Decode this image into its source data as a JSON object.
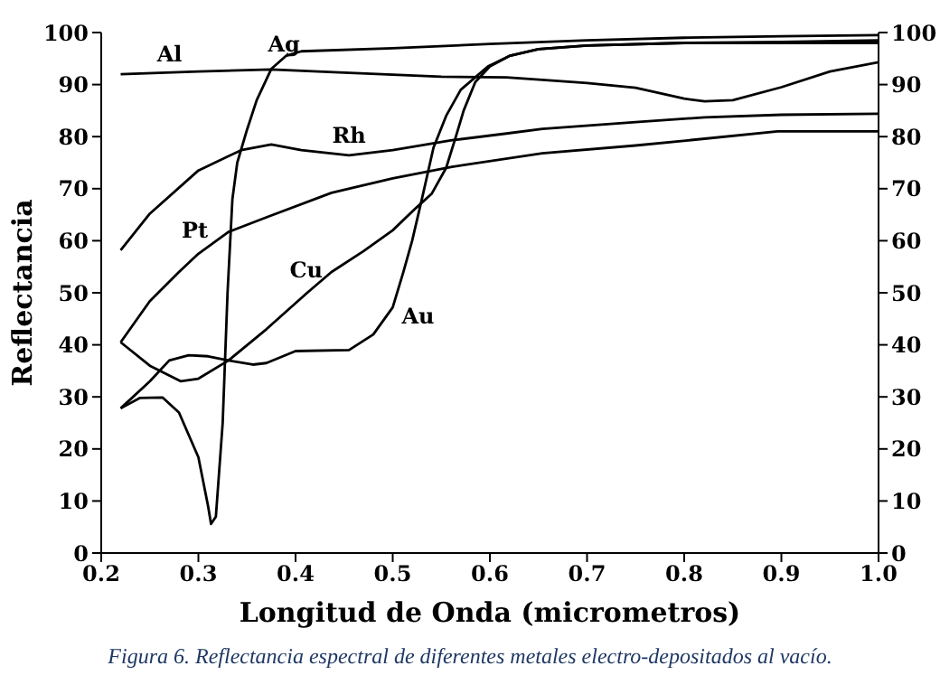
{
  "chart_data": {
    "type": "line",
    "xlabel": "Longitud de Onda (micrometros)",
    "ylabel": "Reflectancia",
    "annotations": [
      "Figura 6. Reflectancia espectral de diferentes metales electro-depositados al vacío."
    ],
    "xlim": [
      0.2,
      1.0
    ],
    "xticks": [
      0.2,
      0.3,
      0.4,
      0.5,
      0.6,
      0.7,
      0.8,
      0.9,
      {
        "value": 1.0,
        "label": "1.0"
      }
    ],
    "ylim": [
      0,
      100
    ],
    "yticks": [
      0,
      10,
      20,
      30,
      40,
      50,
      60,
      70,
      80,
      90,
      100
    ],
    "y2lim": [
      0,
      100
    ],
    "y2ticks": [
      0,
      10,
      20,
      30,
      40,
      50,
      60,
      70,
      80,
      90,
      100
    ],
    "grid": false,
    "legend": false,
    "marker": "none",
    "line_style": "solid",
    "series": [
      {
        "name": "Al",
        "color": "#000000",
        "x": [
          0.22,
          0.3,
          0.375,
          0.45,
          0.55,
          0.617,
          0.654,
          0.7,
          0.75,
          0.8,
          0.821,
          0.85,
          0.9,
          0.95,
          1.0
        ],
        "values": [
          92,
          92.5,
          92.9,
          92.3,
          91.5,
          91.4,
          90.9,
          90.3,
          89.4,
          87.3,
          86.8,
          87,
          89.5,
          92.5,
          94.3
        ]
      },
      {
        "name": "Ag",
        "color": "#000000",
        "x": [
          0.22,
          0.24,
          0.263,
          0.28,
          0.3,
          0.31,
          0.313,
          0.318,
          0.325,
          0.33,
          0.335,
          0.34,
          0.35,
          0.36,
          0.375,
          0.39,
          0.406,
          0.5,
          0.6,
          0.7,
          0.8,
          0.9,
          1.0
        ],
        "values": [
          27.8,
          29.8,
          29.9,
          27,
          18.4,
          9,
          5.6,
          7,
          25,
          50,
          68,
          75,
          81.3,
          87,
          93,
          95.5,
          96.4,
          97,
          97.8,
          98.5,
          99,
          99.3,
          99.5
        ]
      },
      {
        "name": "Rh",
        "color": "#000000",
        "x": [
          0.22,
          0.25,
          0.3,
          0.344,
          0.375,
          0.406,
          0.455,
          0.5,
          0.561,
          0.617,
          0.654,
          0.75,
          0.821,
          0.9,
          1.0
        ],
        "values": [
          58.2,
          65.2,
          73.5,
          77.4,
          78.5,
          77.4,
          76.4,
          77.4,
          79.3,
          80.6,
          81.5,
          82.8,
          83.7,
          84.2,
          84.4
        ]
      },
      {
        "name": "Pt",
        "color": "#000000",
        "x": [
          0.22,
          0.25,
          0.28,
          0.3,
          0.331,
          0.37,
          0.437,
          0.5,
          0.561,
          0.654,
          0.75,
          0.821,
          0.896,
          1.0
        ],
        "values": [
          40.5,
          48.4,
          54,
          57.5,
          61.7,
          64.5,
          69.2,
          72,
          74.2,
          76.8,
          78.3,
          79.6,
          81,
          81
        ]
      },
      {
        "name": "Cu",
        "color": "#000000",
        "x": [
          0.22,
          0.25,
          0.282,
          0.3,
          0.331,
          0.37,
          0.412,
          0.437,
          0.47,
          0.5,
          0.524,
          0.54,
          0.555,
          0.565,
          0.573,
          0.585,
          0.6,
          0.62,
          0.65,
          0.7,
          0.8,
          0.9,
          1.0
        ],
        "values": [
          40.5,
          36,
          33,
          33.5,
          37,
          43,
          50,
          54,
          58,
          62,
          66.3,
          69,
          74,
          80,
          85,
          90.5,
          93.5,
          95.5,
          96.8,
          97.5,
          98,
          98.2,
          98.5
        ]
      },
      {
        "name": "Au",
        "color": "#000000",
        "x": [
          0.22,
          0.25,
          0.27,
          0.29,
          0.31,
          0.331,
          0.356,
          0.37,
          0.4,
          0.455,
          0.48,
          0.5,
          0.511,
          0.52,
          0.53,
          0.542,
          0.555,
          0.57,
          0.598,
          0.62,
          0.65,
          0.7,
          0.8,
          1.0
        ],
        "values": [
          27.8,
          33,
          37,
          38,
          37.8,
          37,
          36.2,
          36.5,
          38.8,
          39,
          42,
          47.2,
          54,
          60,
          68,
          77.9,
          84,
          89,
          93.5,
          95.5,
          96.8,
          97.5,
          98,
          98
        ]
      }
    ]
  }
}
